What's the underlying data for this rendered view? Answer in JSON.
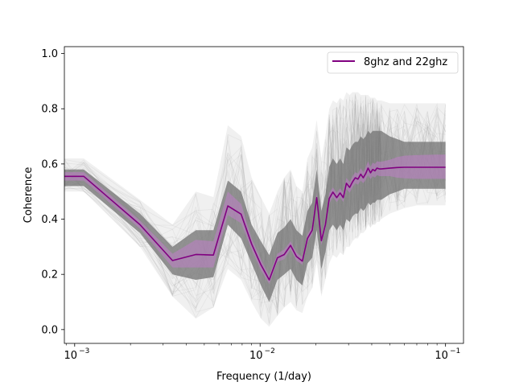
{
  "chart_data": {
    "type": "line",
    "xlabel": "Frequency (1/day)",
    "ylabel": "Coherence",
    "xscale": "log",
    "xlim": [
      0.00088,
      0.125
    ],
    "ylim": [
      -0.05,
      1.025
    ],
    "grid": false,
    "legend_position": "top-right",
    "x_ticks": [
      0.001,
      0.01,
      0.1
    ],
    "x_tick_labels": [
      "10",
      "10",
      "10"
    ],
    "x_tick_exponents": [
      "−3",
      "−2",
      "−1"
    ],
    "y_ticks": [
      0.0,
      0.2,
      0.4,
      0.6,
      0.8,
      1.0
    ],
    "y_tick_labels": [
      "0.0",
      "0.2",
      "0.4",
      "0.6",
      "0.8",
      "1.0"
    ],
    "colors": {
      "main": "#800080",
      "band": "#c080c8",
      "background_realizations": "#808080"
    },
    "series": [
      {
        "name": "8ghz and 22ghz",
        "x": [
          0.00088,
          0.00112,
          0.00225,
          0.00337,
          0.0045,
          0.0056,
          0.0067,
          0.0079,
          0.009,
          0.0101,
          0.0112,
          0.0124,
          0.0135,
          0.0146,
          0.0157,
          0.0169,
          0.018,
          0.0191,
          0.0202,
          0.0214,
          0.0225,
          0.0236,
          0.0247,
          0.0259,
          0.027,
          0.0281,
          0.0292,
          0.0304,
          0.0315,
          0.0326,
          0.0337,
          0.0349,
          0.036,
          0.0371,
          0.0382,
          0.0394,
          0.0405,
          0.0416,
          0.0427,
          0.0439,
          0.045,
          0.05,
          0.055,
          0.06,
          0.07,
          0.08,
          0.09,
          0.1
        ],
        "values": [
          0.555,
          0.555,
          0.38,
          0.25,
          0.272,
          0.27,
          0.448,
          0.418,
          0.31,
          0.235,
          0.18,
          0.26,
          0.272,
          0.305,
          0.265,
          0.248,
          0.33,
          0.36,
          0.478,
          0.322,
          0.38,
          0.475,
          0.498,
          0.478,
          0.495,
          0.478,
          0.53,
          0.515,
          0.535,
          0.55,
          0.545,
          0.563,
          0.55,
          0.565,
          0.585,
          0.568,
          0.58,
          0.575,
          0.585,
          0.582,
          0.582,
          0.585,
          0.587,
          0.588,
          0.588,
          0.588,
          0.588,
          0.588
        ],
        "lower": [
          0.54,
          0.54,
          0.365,
          0.225,
          0.225,
          0.225,
          0.415,
          0.385,
          0.29,
          0.215,
          0.165,
          0.245,
          0.255,
          0.29,
          0.25,
          0.235,
          0.315,
          0.345,
          0.46,
          0.305,
          0.365,
          0.455,
          0.48,
          0.462,
          0.478,
          0.462,
          0.51,
          0.495,
          0.515,
          0.53,
          0.525,
          0.54,
          0.53,
          0.542,
          0.56,
          0.545,
          0.556,
          0.55,
          0.56,
          0.556,
          0.556,
          0.556,
          0.55,
          0.548,
          0.546,
          0.546,
          0.546,
          0.546
        ],
        "upper": [
          0.57,
          0.57,
          0.395,
          0.275,
          0.325,
          0.32,
          0.5,
          0.455,
          0.33,
          0.255,
          0.195,
          0.275,
          0.29,
          0.32,
          0.28,
          0.262,
          0.345,
          0.375,
          0.495,
          0.34,
          0.395,
          0.495,
          0.515,
          0.495,
          0.512,
          0.495,
          0.55,
          0.535,
          0.555,
          0.57,
          0.565,
          0.585,
          0.57,
          0.588,
          0.61,
          0.59,
          0.605,
          0.6,
          0.61,
          0.608,
          0.608,
          0.615,
          0.625,
          0.63,
          0.632,
          0.633,
          0.634,
          0.634
        ]
      }
    ],
    "background_envelope": {
      "x": [
        0.00088,
        0.00112,
        0.00225,
        0.00337,
        0.0045,
        0.0056,
        0.0067,
        0.0079,
        0.009,
        0.0101,
        0.0112,
        0.0124,
        0.0135,
        0.0146,
        0.0157,
        0.0169,
        0.018,
        0.0191,
        0.0202,
        0.0214,
        0.0225,
        0.0236,
        0.0247,
        0.0259,
        0.027,
        0.0281,
        0.0292,
        0.0304,
        0.0315,
        0.0326,
        0.0337,
        0.0349,
        0.036,
        0.0371,
        0.0382,
        0.0394,
        0.0405,
        0.0416,
        0.0427,
        0.0439,
        0.045,
        0.05,
        0.055,
        0.06,
        0.07,
        0.08,
        0.09,
        0.1
      ],
      "dense_low": [
        0.52,
        0.52,
        0.35,
        0.2,
        0.18,
        0.19,
        0.38,
        0.33,
        0.24,
        0.16,
        0.1,
        0.18,
        0.2,
        0.22,
        0.18,
        0.16,
        0.24,
        0.26,
        0.36,
        0.22,
        0.28,
        0.36,
        0.38,
        0.36,
        0.38,
        0.36,
        0.4,
        0.39,
        0.41,
        0.42,
        0.42,
        0.44,
        0.43,
        0.44,
        0.46,
        0.45,
        0.46,
        0.46,
        0.47,
        0.47,
        0.47,
        0.49,
        0.5,
        0.51,
        0.51,
        0.51,
        0.51,
        0.51
      ],
      "dense_high": [
        0.58,
        0.58,
        0.42,
        0.3,
        0.36,
        0.36,
        0.54,
        0.5,
        0.38,
        0.32,
        0.27,
        0.35,
        0.37,
        0.4,
        0.36,
        0.34,
        0.43,
        0.46,
        0.58,
        0.43,
        0.49,
        0.59,
        0.62,
        0.6,
        0.62,
        0.6,
        0.66,
        0.65,
        0.67,
        0.68,
        0.68,
        0.7,
        0.69,
        0.7,
        0.72,
        0.71,
        0.72,
        0.72,
        0.72,
        0.72,
        0.72,
        0.7,
        0.69,
        0.68,
        0.68,
        0.68,
        0.68,
        0.68
      ],
      "faint_low": [
        0.5,
        0.5,
        0.3,
        0.12,
        0.04,
        0.08,
        0.22,
        0.18,
        0.1,
        0.04,
        0.01,
        0.05,
        0.08,
        0.1,
        0.07,
        0.06,
        0.12,
        0.15,
        0.24,
        0.12,
        0.18,
        0.24,
        0.27,
        0.26,
        0.28,
        0.27,
        0.3,
        0.3,
        0.32,
        0.33,
        0.33,
        0.35,
        0.35,
        0.36,
        0.38,
        0.37,
        0.38,
        0.38,
        0.39,
        0.39,
        0.4,
        0.42,
        0.43,
        0.44,
        0.45,
        0.45,
        0.45,
        0.45
      ],
      "faint_high": [
        0.62,
        0.62,
        0.47,
        0.38,
        0.5,
        0.48,
        0.74,
        0.7,
        0.55,
        0.48,
        0.42,
        0.5,
        0.55,
        0.58,
        0.52,
        0.5,
        0.62,
        0.66,
        0.76,
        0.62,
        0.7,
        0.8,
        0.83,
        0.82,
        0.84,
        0.83,
        0.86,
        0.85,
        0.86,
        0.86,
        0.86,
        0.85,
        0.85,
        0.85,
        0.85,
        0.84,
        0.84,
        0.84,
        0.83,
        0.83,
        0.83,
        0.82,
        0.82,
        0.82,
        0.82,
        0.82,
        0.82,
        0.82
      ]
    }
  }
}
